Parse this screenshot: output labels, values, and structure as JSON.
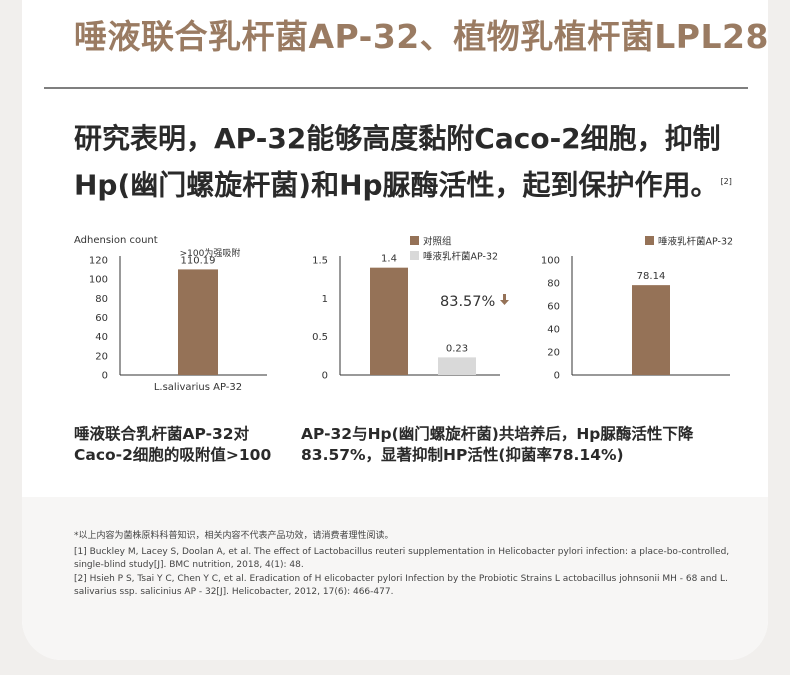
{
  "headline": "唾液联合乳杆菌AP-32、植物乳植杆菌LPL28",
  "lead": {
    "line1": "研究表明，AP-32能够高度黏附Caco-2细胞，抑制",
    "line2": "Hp(幽门螺旋杆菌)和Hp脲酶活性，起到保护作用。",
    "ref_mark": "[2]"
  },
  "colors": {
    "bar_brown": "#957257",
    "bar_grey": "#d9d9d9",
    "headline": "#9a7b62"
  },
  "chart_data": [
    {
      "type": "bar",
      "ylabel": "Adhension count",
      "annotation": ">100为强吸附",
      "categories": [
        "L.salivarius AP-32"
      ],
      "values": [
        110.19
      ],
      "value_labels": [
        "110.19"
      ],
      "yticks": [
        "0",
        "20",
        "40",
        "60",
        "80",
        "100",
        "120"
      ],
      "ylim": [
        0,
        120
      ]
    },
    {
      "type": "bar",
      "series": [
        {
          "name": "对照组",
          "values": [
            1.4
          ],
          "label": "1.4"
        },
        {
          "name": "唾液乳杆菌AP-32",
          "values": [
            0.23
          ],
          "label": "0.23"
        }
      ],
      "annotation": "83.57%",
      "annotation_icon": "down-arrow-icon",
      "yticks": [
        "0",
        "0.5",
        "1",
        "1.5"
      ],
      "ylim": [
        0,
        1.5
      ],
      "legend": "top-right"
    },
    {
      "type": "bar",
      "series": [
        {
          "name": "唾液乳杆菌AP-32",
          "values": [
            78.14
          ],
          "label": "78.14"
        }
      ],
      "yticks": [
        "0",
        "20",
        "40",
        "60",
        "80",
        "100"
      ],
      "ylim": [
        0,
        100
      ],
      "legend": "top-right"
    }
  ],
  "captions": {
    "left": {
      "line1": "唾液联合乳杆菌AP-32对",
      "line2": "Caco-2细胞的吸附值>100"
    },
    "right": {
      "line1": "AP-32与Hp(幽门螺旋杆菌)共培养后，Hp脲酶活性下降",
      "line2": "83.57%，显著抑制HP活性(抑菌率78.14%)"
    }
  },
  "refs": {
    "note": "*以上内容为菌株原料科普知识，相关内容不代表产品功效，请消费者理性阅读。",
    "r1": "[1] Buckley M, Lacey S, Doolan A, et al. The effect of Lactobacillus reuteri supplementation in Helicobacter pylori infection: a place-bo-controlled, single-blind study[J]. BMC nutrition, 2018, 4(1): 48.",
    "r2": "[2] Hsieh P S, Tsai Y C, Chen Y C, et al. Eradication of H elicobacter pylori Infection by the Probiotic Strains L actobacillus johnsonii MH - 68 and L. salivarius ssp. salicinius AP - 32[J]. Helicobacter, 2012, 17(6): 466-477."
  }
}
